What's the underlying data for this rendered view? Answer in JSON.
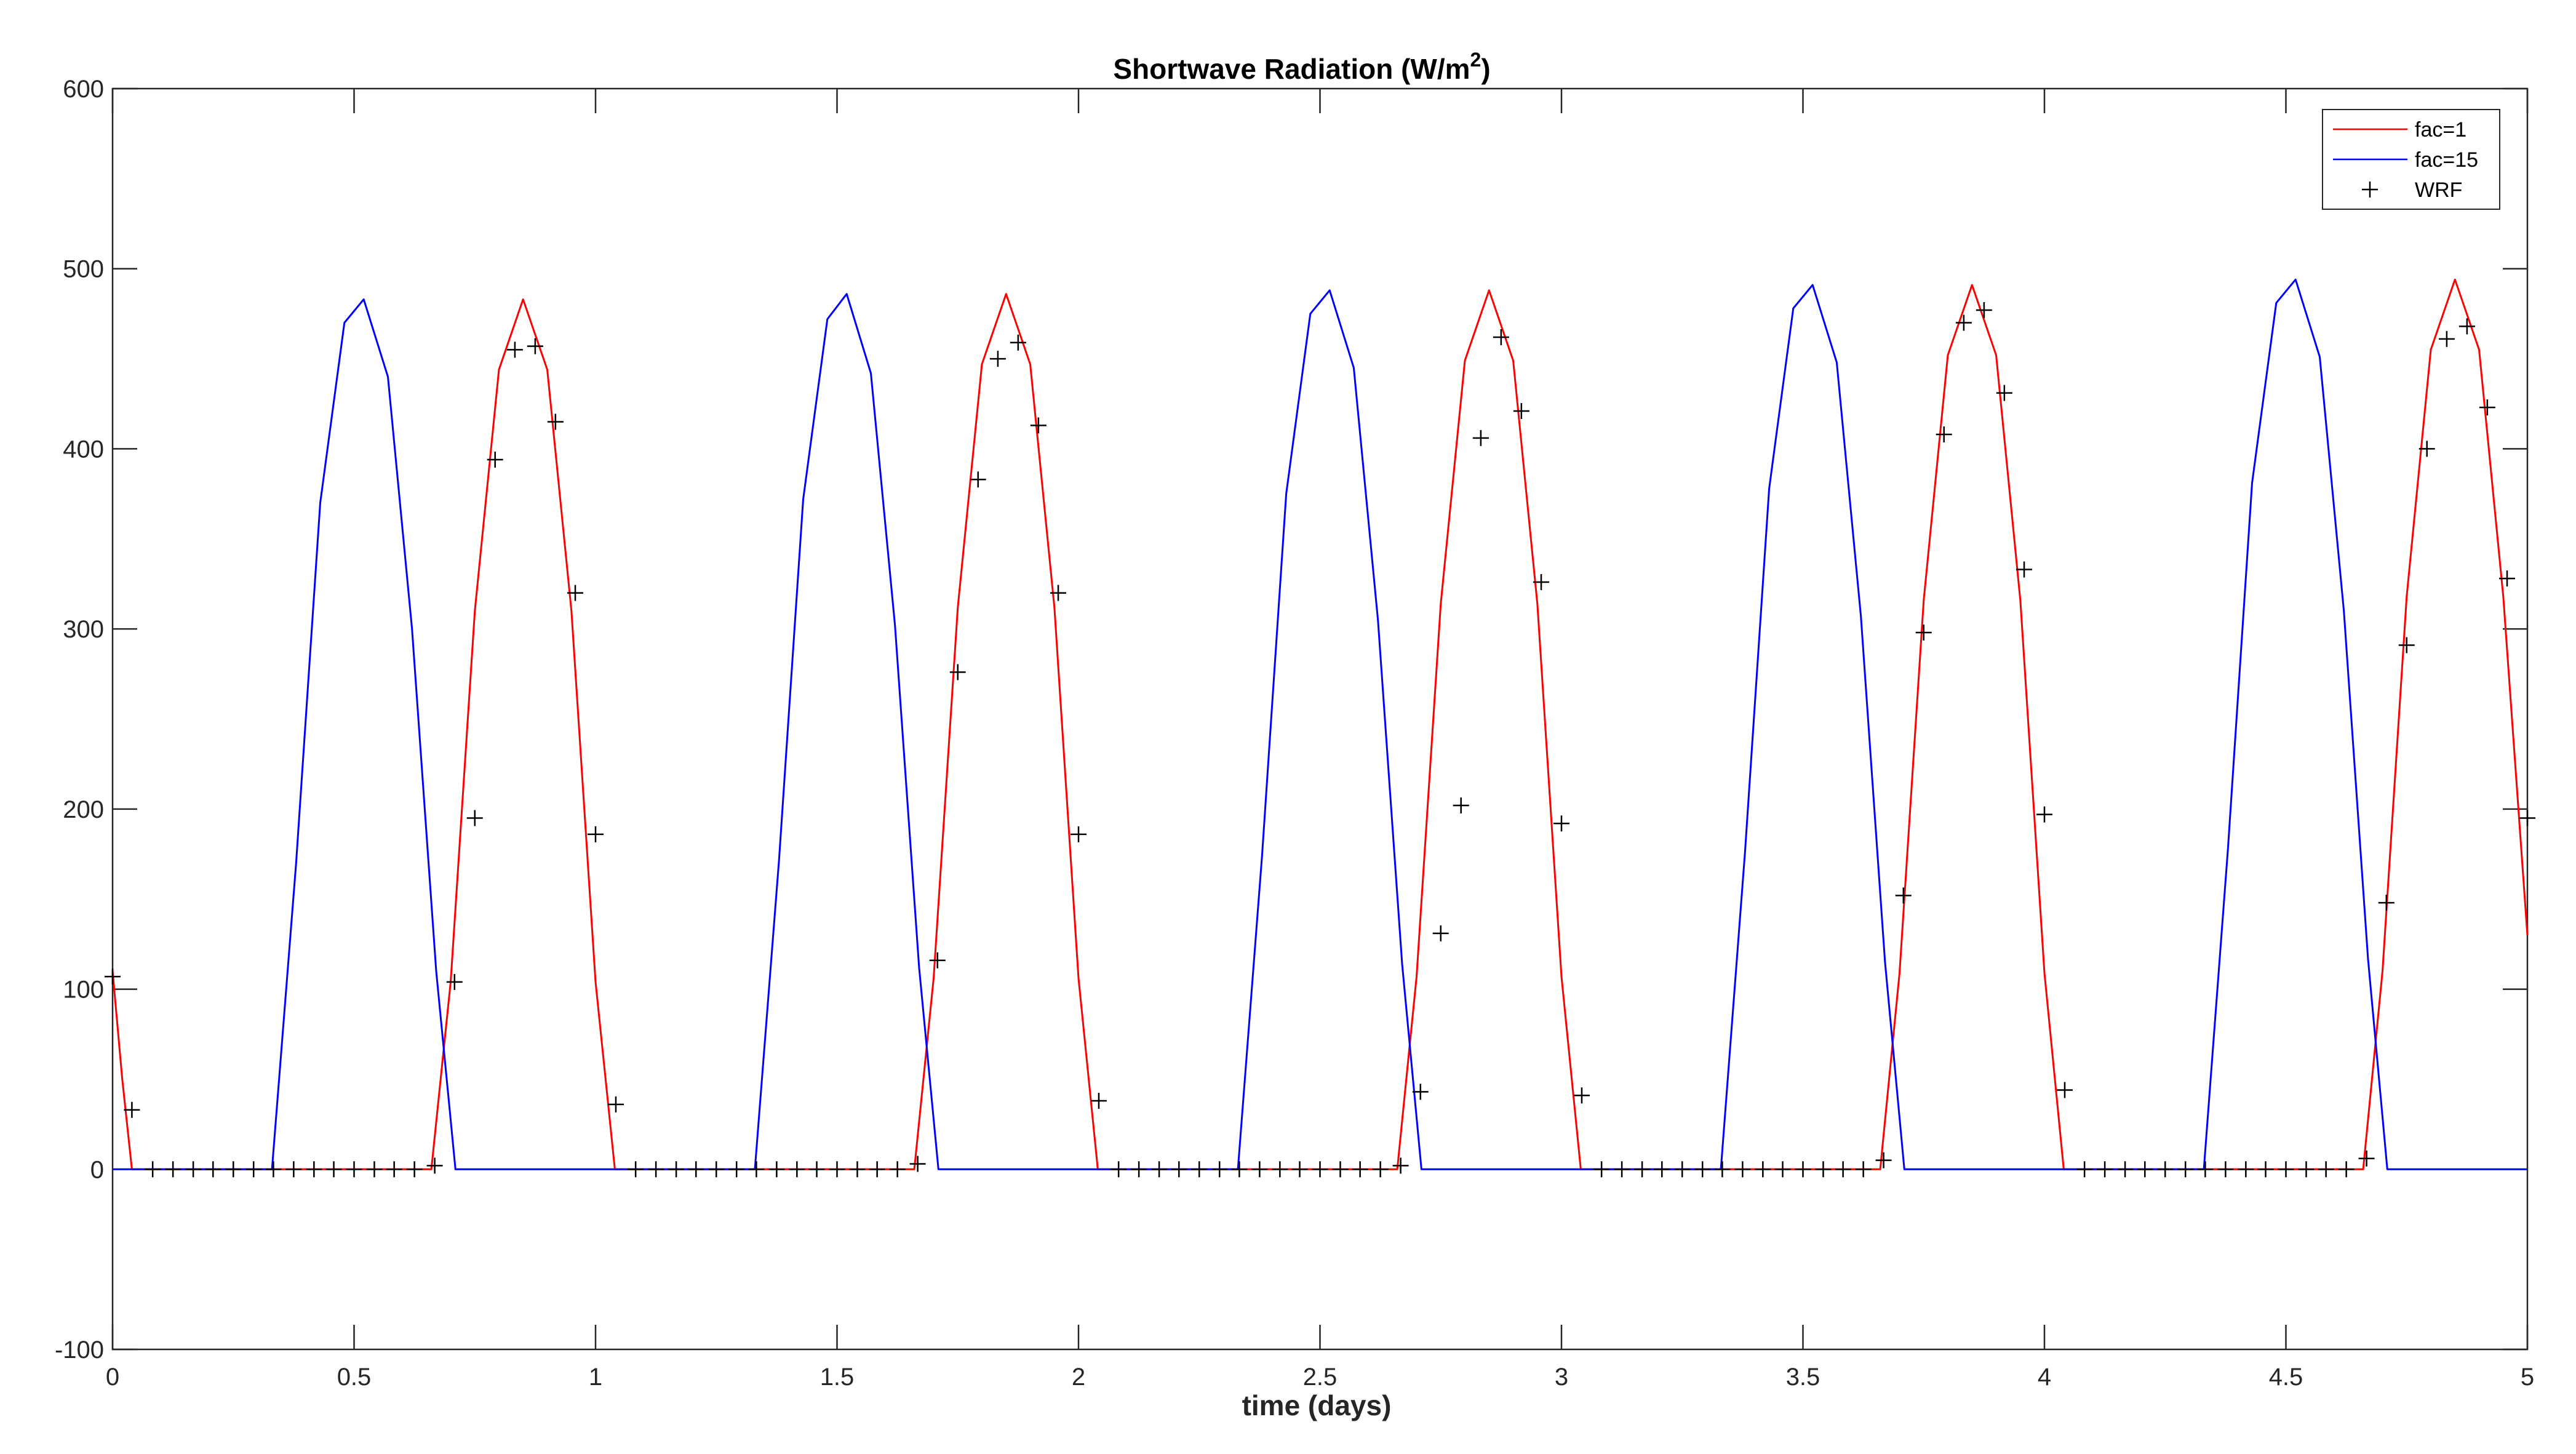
{
  "chart_data": {
    "type": "line",
    "title": {
      "main": "Shortwave Radiation (W/m",
      "sup": "2",
      "close": ")"
    },
    "xlabel": "time (days)",
    "ylabel": "",
    "xlim": [
      0,
      5
    ],
    "ylim": [
      -100,
      600
    ],
    "xticks": [
      0,
      0.5,
      1,
      1.5,
      2,
      2.5,
      3,
      3.5,
      4,
      4.5,
      5
    ],
    "xtick_labels": [
      "0",
      "0.5",
      "1",
      "1.5",
      "2",
      "2.5",
      "3",
      "3.5",
      "4",
      "4.5",
      "5"
    ],
    "yticks": [
      -100,
      0,
      100,
      200,
      300,
      400,
      500,
      600
    ],
    "ytick_labels": [
      "-100",
      "0",
      "100",
      "200",
      "300",
      "400",
      "500",
      "600"
    ],
    "grid": false,
    "legend_position": "top-right",
    "series": [
      {
        "name": "fac=1",
        "style": "line",
        "color": "#ff0000",
        "x": [
          0,
          0.02,
          0.04,
          0.66,
          0.7,
          0.75,
          0.8,
          0.85,
          0.9,
          0.95,
          1.0,
          1.04,
          1.66,
          1.7,
          1.75,
          1.8,
          1.85,
          1.9,
          1.95,
          2.0,
          2.04,
          2.66,
          2.7,
          2.75,
          2.8,
          2.85,
          2.9,
          2.95,
          3.0,
          3.04,
          3.66,
          3.7,
          3.75,
          3.8,
          3.85,
          3.9,
          3.95,
          4.0,
          4.04,
          4.66,
          4.7,
          4.75,
          4.8,
          4.85,
          4.9,
          4.95,
          5.0
        ],
        "y": [
          110,
          50,
          0,
          0,
          104,
          310,
          444,
          483,
          444,
          310,
          104,
          0,
          0,
          106,
          312,
          447,
          486,
          447,
          312,
          106,
          0,
          0,
          107,
          314,
          449,
          488,
          449,
          314,
          107,
          0,
          0,
          109,
          316,
          452,
          491,
          452,
          316,
          109,
          0,
          0,
          110,
          318,
          455,
          494,
          455,
          318,
          130
        ]
      },
      {
        "name": "fac=15",
        "style": "line",
        "color": "#0000ff",
        "x": [
          0,
          0.33,
          0.38,
          0.43,
          0.48,
          0.52,
          0.57,
          0.62,
          0.67,
          0.71,
          1.33,
          1.38,
          1.43,
          1.48,
          1.52,
          1.57,
          1.62,
          1.67,
          1.71,
          2.33,
          2.38,
          2.43,
          2.48,
          2.52,
          2.57,
          2.62,
          2.67,
          2.71,
          3.33,
          3.38,
          3.43,
          3.48,
          3.52,
          3.57,
          3.62,
          3.67,
          3.71,
          4.33,
          4.38,
          4.43,
          4.48,
          4.52,
          4.57,
          4.62,
          4.67,
          4.71,
          5.0
        ],
        "y": [
          0,
          0,
          170,
          370,
          470,
          483,
          440,
          300,
          110,
          0,
          0,
          172,
          372,
          472,
          486,
          442,
          302,
          112,
          0,
          0,
          174,
          375,
          475,
          488,
          445,
          305,
          114,
          0,
          0,
          176,
          378,
          478,
          491,
          448,
          307,
          115,
          0,
          0,
          178,
          381,
          481,
          494,
          451,
          310,
          117,
          0,
          0
        ]
      },
      {
        "name": "WRF",
        "style": "marker",
        "color": "#000000",
        "x": [
          0,
          0.04,
          0.083,
          0.125,
          0.167,
          0.208,
          0.25,
          0.292,
          0.333,
          0.375,
          0.417,
          0.458,
          0.5,
          0.542,
          0.583,
          0.625,
          0.667,
          0.708,
          0.75,
          0.792,
          0.833,
          0.875,
          0.917,
          0.958,
          1.0,
          1.042,
          1.083,
          1.125,
          1.167,
          1.208,
          1.25,
          1.292,
          1.333,
          1.375,
          1.417,
          1.458,
          1.5,
          1.542,
          1.583,
          1.625,
          1.667,
          1.708,
          1.75,
          1.792,
          1.833,
          1.875,
          1.917,
          1.958,
          2.0,
          2.042,
          2.083,
          2.125,
          2.167,
          2.208,
          2.25,
          2.292,
          2.333,
          2.375,
          2.417,
          2.458,
          2.5,
          2.542,
          2.583,
          2.625,
          2.667,
          2.708,
          2.75,
          2.792,
          2.833,
          2.875,
          2.917,
          2.958,
          3.0,
          3.042,
          3.083,
          3.125,
          3.167,
          3.208,
          3.25,
          3.292,
          3.333,
          3.375,
          3.417,
          3.458,
          3.5,
          3.542,
          3.583,
          3.625,
          3.667,
          3.708,
          3.75,
          3.792,
          3.833,
          3.875,
          3.917,
          3.958,
          4.0,
          4.042,
          4.083,
          4.125,
          4.167,
          4.208,
          4.25,
          4.292,
          4.333,
          4.375,
          4.417,
          4.458,
          4.5,
          4.542,
          4.583,
          4.625,
          4.667,
          4.708,
          4.75,
          4.792,
          4.833,
          4.875,
          4.917,
          4.958,
          5.0
        ],
        "y": [
          107,
          33,
          0,
          0,
          0,
          0,
          0,
          0,
          0,
          0,
          0,
          0,
          0,
          0,
          0,
          0,
          2,
          104,
          195,
          394,
          455,
          457,
          415,
          320,
          186,
          36,
          0,
          0,
          0,
          0,
          0,
          0,
          0,
          0,
          0,
          0,
          0,
          0,
          0,
          0,
          3,
          116,
          276,
          383,
          450,
          459,
          413,
          320,
          186,
          38,
          0,
          0,
          0,
          0,
          0,
          0,
          0,
          0,
          0,
          0,
          0,
          0,
          0,
          0,
          2,
          43,
          131,
          202,
          406,
          462,
          421,
          326,
          192,
          41,
          0,
          0,
          0,
          0,
          0,
          0,
          0,
          0,
          0,
          0,
          0,
          0,
          0,
          0,
          5,
          152,
          298,
          408,
          470,
          477,
          431,
          333,
          197,
          44,
          0,
          0,
          0,
          0,
          0,
          0,
          0,
          0,
          0,
          0,
          0,
          0,
          0,
          0,
          6,
          148,
          291,
          400,
          461,
          468,
          423,
          328,
          195
        ]
      }
    ]
  }
}
